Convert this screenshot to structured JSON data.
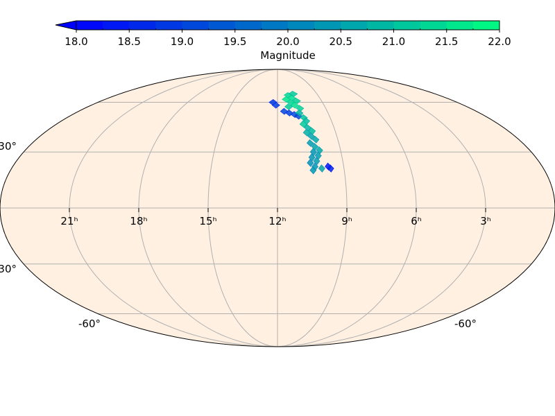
{
  "colorbar": {
    "label": "Magnitude",
    "min": 18.0,
    "max": 22.0,
    "color_min": "#0000ff",
    "color_max": "#00ff80",
    "extend": "min",
    "ticks": [
      "18.0",
      "18.5",
      "19.0",
      "19.5",
      "20.0",
      "20.5",
      "21.0",
      "21.5",
      "22.0"
    ],
    "tick_values": [
      18.0,
      18.5,
      19.0,
      19.5,
      20.0,
      20.5,
      21.0,
      21.5,
      22.0
    ],
    "minor_step": 0.25
  },
  "map": {
    "projection": "mollweide",
    "background_color": "#fff0e1",
    "grid_color": "#b0b0b0",
    "ra_grid_hours": [
      3,
      6,
      9,
      12,
      15,
      18,
      21
    ],
    "dec_grid_degrees": [
      -60,
      -30,
      0,
      30,
      60
    ],
    "ra_labels": [
      "21ʰ",
      "18ʰ",
      "15ʰ",
      "12ʰ",
      "9ʰ",
      "6ʰ",
      "3ʰ"
    ],
    "ra_label_hours": [
      21,
      18,
      15,
      12,
      9,
      6,
      3
    ],
    "dec_labels": [
      "30°",
      "-30°",
      "-60°",
      "-60°"
    ]
  },
  "tiles": [
    {
      "ra": 11.2,
      "dec": 65,
      "mag": 21.4
    },
    {
      "ra": 11.0,
      "dec": 63,
      "mag": 21.5
    },
    {
      "ra": 10.8,
      "dec": 66,
      "mag": 21.2
    },
    {
      "ra": 11.4,
      "dec": 62,
      "mag": 21.6
    },
    {
      "ra": 10.7,
      "dec": 61,
      "mag": 21.3
    },
    {
      "ra": 11.1,
      "dec": 60,
      "mag": 21.4
    },
    {
      "ra": 10.9,
      "dec": 58,
      "mag": 21.5
    },
    {
      "ra": 11.3,
      "dec": 57,
      "mag": 21.2
    },
    {
      "ra": 10.6,
      "dec": 56,
      "mag": 21.3
    },
    {
      "ra": 12.3,
      "dec": 60,
      "mag": 18.9
    },
    {
      "ra": 12.1,
      "dec": 58,
      "mag": 19.0
    },
    {
      "ra": 11.6,
      "dec": 54,
      "mag": 19.1
    },
    {
      "ra": 11.3,
      "dec": 53,
      "mag": 19.0
    },
    {
      "ra": 11.0,
      "dec": 52,
      "mag": 19.2
    },
    {
      "ra": 10.8,
      "dec": 51,
      "mag": 19.1
    },
    {
      "ra": 10.7,
      "dec": 53,
      "mag": 20.9
    },
    {
      "ra": 10.5,
      "dec": 50,
      "mag": 21.1
    },
    {
      "ra": 10.4,
      "dec": 48,
      "mag": 21.0
    },
    {
      "ra": 10.6,
      "dec": 46,
      "mag": 21.2
    },
    {
      "ra": 10.4,
      "dec": 44,
      "mag": 20.9
    },
    {
      "ra": 10.2,
      "dec": 42,
      "mag": 21.0
    },
    {
      "ra": 10.5,
      "dec": 41,
      "mag": 20.8
    },
    {
      "ra": 10.3,
      "dec": 39,
      "mag": 20.6
    },
    {
      "ra": 10.1,
      "dec": 37,
      "mag": 20.7
    },
    {
      "ra": 10.4,
      "dec": 35,
      "mag": 20.5
    },
    {
      "ra": 10.2,
      "dec": 33,
      "mag": 20.6
    },
    {
      "ra": 10.0,
      "dec": 31,
      "mag": 20.7
    },
    {
      "ra": 10.3,
      "dec": 30,
      "mag": 20.4
    },
    {
      "ra": 10.1,
      "dec": 28,
      "mag": 20.5
    },
    {
      "ra": 10.4,
      "dec": 27,
      "mag": 20.4
    },
    {
      "ra": 10.2,
      "dec": 25,
      "mag": 20.5
    },
    {
      "ra": 10.5,
      "dec": 24,
      "mag": 20.3
    },
    {
      "ra": 10.3,
      "dec": 22,
      "mag": 20.4
    },
    {
      "ra": 10.0,
      "dec": 21,
      "mag": 20.6
    },
    {
      "ra": 10.4,
      "dec": 20,
      "mag": 20.4
    },
    {
      "ra": 9.7,
      "dec": 22,
      "mag": 18.4
    },
    {
      "ra": 9.6,
      "dec": 21,
      "mag": 18.6
    }
  ]
}
